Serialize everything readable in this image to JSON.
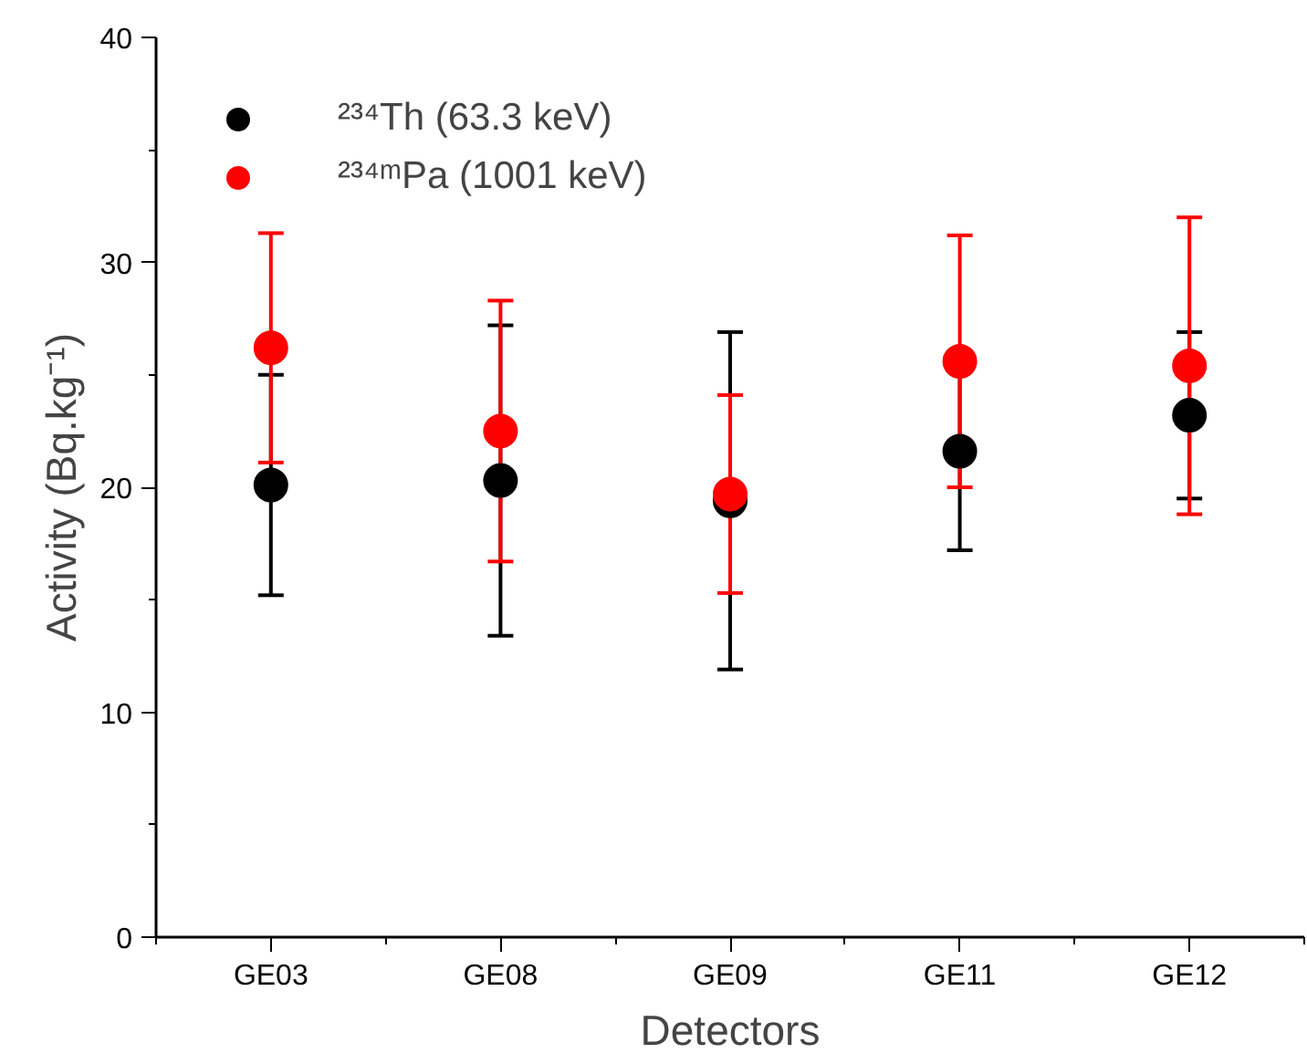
{
  "chart_data": {
    "type": "scatter",
    "xlabel": "Detectors",
    "ylabel": "Activity (Bq.kg⁻¹)",
    "categories": [
      "GE03",
      "GE08",
      "GE09",
      "GE11",
      "GE12"
    ],
    "series": [
      {
        "name": "²³⁴Th (63.3 keV)",
        "color": "#000000",
        "values": [
          20.1,
          20.3,
          19.4,
          21.6,
          23.2
        ],
        "errors": [
          4.9,
          6.9,
          7.5,
          4.4,
          3.7
        ]
      },
      {
        "name": "²³⁴ᵐPa (1001 keV)",
        "color": "#ff0000",
        "values": [
          26.2,
          22.5,
          19.7,
          25.6,
          25.4
        ],
        "errors": [
          5.1,
          5.8,
          4.4,
          5.6,
          6.6
        ]
      }
    ],
    "ylim": [
      0,
      40
    ],
    "yticks": [
      0,
      10,
      20,
      30,
      40
    ],
    "grid": false,
    "legend": "top left",
    "marker": "circle"
  }
}
